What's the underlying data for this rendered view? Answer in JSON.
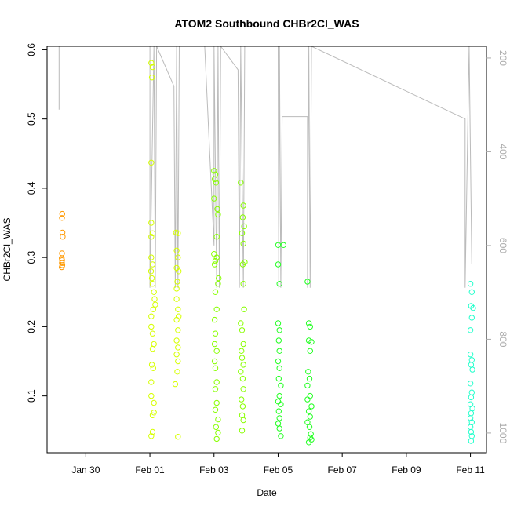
{
  "chart_data": {
    "type": "scatter",
    "title": "ATOM2 Southbound CHBr2Cl_WAS",
    "xlabel": "Date",
    "ylabel": "CHBr2Cl_WAS",
    "xlim": [
      "2017-01-28T19:00",
      "2017-02-11T12:00"
    ],
    "ylim": [
      0.018,
      0.605
    ],
    "x_ticks": [
      "Jan 30",
      "Feb 01",
      "Feb 03",
      "Feb 05",
      "Feb 07",
      "Feb 09",
      "Feb 11"
    ],
    "y_ticks": [
      0.1,
      0.2,
      0.3,
      0.4,
      0.5,
      0.6
    ],
    "right_axis": {
      "reversed": true,
      "ylim": [
        1042,
        175
      ],
      "ticks": [
        200,
        400,
        600,
        800,
        1000
      ],
      "color": "#aaaaaa",
      "note": "altitude trace drawn as grey line"
    },
    "grid": false,
    "legend": "none",
    "series": [
      {
        "color": "#ff9900",
        "points": [
          [
            "2017-01-29T06:10",
            0.357
          ],
          [
            "2017-01-29T06:20",
            0.363
          ],
          [
            "2017-01-29T06:30",
            0.336
          ],
          [
            "2017-01-29T06:40",
            0.33
          ],
          [
            "2017-01-29T06:10",
            0.306
          ],
          [
            "2017-01-29T06:00",
            0.299
          ],
          [
            "2017-01-29T06:15",
            0.296
          ],
          [
            "2017-01-29T06:05",
            0.292
          ],
          [
            "2017-01-29T06:25",
            0.289
          ],
          [
            "2017-01-29T06:00",
            0.286
          ]
        ]
      },
      {
        "color": "#d6ff00",
        "points": [
          [
            "2017-02-01T01:00",
            0.581
          ],
          [
            "2017-02-01T02:00",
            0.575
          ],
          [
            "2017-02-01T01:30",
            0.56
          ],
          [
            "2017-02-01T01:00",
            0.437
          ],
          [
            "2017-02-01T01:00",
            0.35
          ],
          [
            "2017-02-01T02:00",
            0.335
          ],
          [
            "2017-02-01T01:00",
            0.33
          ],
          [
            "2017-02-01T01:00",
            0.3
          ],
          [
            "2017-02-01T02:00",
            0.29
          ],
          [
            "2017-02-01T00:50",
            0.28
          ],
          [
            "2017-02-01T01:30",
            0.27
          ],
          [
            "2017-02-01T02:00",
            0.262
          ],
          [
            "2017-02-01T03:00",
            0.25
          ],
          [
            "2017-02-01T03:30",
            0.24
          ],
          [
            "2017-02-01T04:00",
            0.232
          ],
          [
            "2017-02-01T02:30",
            0.225
          ],
          [
            "2017-02-01T01:00",
            0.215
          ],
          [
            "2017-02-01T01:00",
            0.2
          ],
          [
            "2017-02-01T02:00",
            0.19
          ],
          [
            "2017-02-01T03:00",
            0.175
          ],
          [
            "2017-02-01T02:00",
            0.168
          ],
          [
            "2017-02-01T01:30",
            0.145
          ],
          [
            "2017-02-01T02:30",
            0.14
          ],
          [
            "2017-02-01T01:00",
            0.12
          ],
          [
            "2017-02-01T01:00",
            0.1
          ],
          [
            "2017-02-01T03:00",
            0.09
          ],
          [
            "2017-02-01T03:00",
            0.076
          ],
          [
            "2017-02-01T02:00",
            0.072
          ],
          [
            "2017-02-01T02:00",
            0.048
          ],
          [
            "2017-02-01T01:00",
            0.042
          ],
          [
            "2017-02-01T19:30",
            0.336
          ],
          [
            "2017-02-01T21:00",
            0.335
          ],
          [
            "2017-02-01T20:00",
            0.31
          ],
          [
            "2017-02-01T21:00",
            0.3
          ],
          [
            "2017-02-01T20:00",
            0.285
          ],
          [
            "2017-02-01T21:30",
            0.28
          ],
          [
            "2017-02-01T20:30",
            0.265
          ],
          [
            "2017-02-01T20:00",
            0.255
          ],
          [
            "2017-02-01T20:00",
            0.24
          ],
          [
            "2017-02-01T21:00",
            0.225
          ],
          [
            "2017-02-01T21:30",
            0.215
          ],
          [
            "2017-02-01T20:00",
            0.21
          ],
          [
            "2017-02-01T21:00",
            0.195
          ],
          [
            "2017-02-01T20:00",
            0.18
          ],
          [
            "2017-02-01T21:00",
            0.17
          ],
          [
            "2017-02-01T20:00",
            0.16
          ],
          [
            "2017-02-01T21:00",
            0.15
          ],
          [
            "2017-02-01T20:30",
            0.135
          ],
          [
            "2017-02-01T19:00",
            0.117
          ],
          [
            "2017-02-01T21:00",
            0.041
          ]
        ]
      },
      {
        "color": "#88ff00",
        "points": [
          [
            "2017-02-03T00:00",
            0.425
          ],
          [
            "2017-02-03T01:00",
            0.42
          ],
          [
            "2017-02-03T00:30",
            0.413
          ],
          [
            "2017-02-03T01:30",
            0.408
          ],
          [
            "2017-02-03T00:00",
            0.385
          ],
          [
            "2017-02-03T02:30",
            0.37
          ],
          [
            "2017-02-03T03:00",
            0.362
          ],
          [
            "2017-02-03T02:00",
            0.33
          ],
          [
            "2017-02-03T00:00",
            0.305
          ],
          [
            "2017-02-03T02:00",
            0.3
          ],
          [
            "2017-02-03T01:00",
            0.295
          ],
          [
            "2017-02-03T00:30",
            0.29
          ],
          [
            "2017-02-03T03:30",
            0.27
          ],
          [
            "2017-02-03T03:00",
            0.262
          ],
          [
            "2017-02-03T01:00",
            0.25
          ],
          [
            "2017-02-03T02:00",
            0.225
          ],
          [
            "2017-02-03T00:30",
            0.21
          ],
          [
            "2017-02-03T01:00",
            0.19
          ],
          [
            "2017-02-03T00:30",
            0.175
          ],
          [
            "2017-02-03T02:00",
            0.165
          ],
          [
            "2017-02-03T00:30",
            0.15
          ],
          [
            "2017-02-03T01:00",
            0.14
          ],
          [
            "2017-02-03T02:00",
            0.12
          ],
          [
            "2017-02-03T01:00",
            0.11
          ],
          [
            "2017-02-03T02:00",
            0.09
          ],
          [
            "2017-02-03T01:00",
            0.08
          ],
          [
            "2017-02-03T03:00",
            0.066
          ],
          [
            "2017-02-03T01:30",
            0.055
          ],
          [
            "2017-02-03T03:00",
            0.047
          ],
          [
            "2017-02-03T02:00",
            0.038
          ],
          [
            "2017-02-03T20:00",
            0.408
          ],
          [
            "2017-02-03T22:00",
            0.375
          ],
          [
            "2017-02-03T21:30",
            0.358
          ],
          [
            "2017-02-03T22:30",
            0.345
          ],
          [
            "2017-02-03T21:00",
            0.335
          ],
          [
            "2017-02-03T22:00",
            0.32
          ],
          [
            "2017-02-03T23:00",
            0.293
          ],
          [
            "2017-02-03T21:30",
            0.29
          ],
          [
            "2017-02-03T22:00",
            0.262
          ],
          [
            "2017-02-03T22:30",
            0.225
          ],
          [
            "2017-02-03T20:00",
            0.205
          ],
          [
            "2017-02-03T21:00",
            0.195
          ],
          [
            "2017-02-03T22:00",
            0.175
          ],
          [
            "2017-02-03T20:30",
            0.165
          ],
          [
            "2017-02-03T21:00",
            0.155
          ],
          [
            "2017-02-03T22:00",
            0.145
          ],
          [
            "2017-02-03T20:00",
            0.135
          ],
          [
            "2017-02-03T21:30",
            0.125
          ],
          [
            "2017-02-03T22:00",
            0.11
          ],
          [
            "2017-02-03T20:30",
            0.095
          ],
          [
            "2017-02-03T21:30",
            0.085
          ],
          [
            "2017-02-03T21:00",
            0.072
          ],
          [
            "2017-02-03T22:00",
            0.065
          ],
          [
            "2017-02-03T21:00",
            0.05
          ]
        ]
      },
      {
        "color": "#22ff22",
        "points": [
          [
            "2017-02-05T00:00",
            0.318
          ],
          [
            "2017-02-05T04:00",
            0.318
          ],
          [
            "2017-02-05T00:00",
            0.29
          ],
          [
            "2017-02-05T01:00",
            0.262
          ],
          [
            "2017-02-05T00:00",
            0.205
          ],
          [
            "2017-02-05T01:00",
            0.195
          ],
          [
            "2017-02-05T00:30",
            0.18
          ],
          [
            "2017-02-05T01:00",
            0.165
          ],
          [
            "2017-02-05T00:00",
            0.15
          ],
          [
            "2017-02-05T01:00",
            0.14
          ],
          [
            "2017-02-05T00:30",
            0.125
          ],
          [
            "2017-02-05T02:00",
            0.115
          ],
          [
            "2017-02-05T01:00",
            0.1
          ],
          [
            "2017-02-05T00:00",
            0.092
          ],
          [
            "2017-02-05T02:00",
            0.088
          ],
          [
            "2017-02-05T00:30",
            0.078
          ],
          [
            "2017-02-05T01:00",
            0.068
          ],
          [
            "2017-02-05T00:00",
            0.06
          ],
          [
            "2017-02-05T01:00",
            0.053
          ],
          [
            "2017-02-05T02:00",
            0.042
          ],
          [
            "2017-02-05T22:00",
            0.265
          ],
          [
            "2017-02-05T23:00",
            0.205
          ],
          [
            "2017-02-06T00:00",
            0.2
          ],
          [
            "2017-02-05T23:00",
            0.18
          ],
          [
            "2017-02-06T01:00",
            0.178
          ],
          [
            "2017-02-06T00:00",
            0.165
          ],
          [
            "2017-02-05T22:30",
            0.135
          ],
          [
            "2017-02-05T23:30",
            0.125
          ],
          [
            "2017-02-05T22:00",
            0.115
          ],
          [
            "2017-02-06T00:00",
            0.1
          ],
          [
            "2017-02-05T22:00",
            0.095
          ],
          [
            "2017-02-06T01:00",
            0.085
          ],
          [
            "2017-02-05T23:00",
            0.078
          ],
          [
            "2017-02-06T00:00",
            0.07
          ],
          [
            "2017-02-05T22:00",
            0.062
          ],
          [
            "2017-02-05T23:30",
            0.055
          ],
          [
            "2017-02-06T00:30",
            0.045
          ],
          [
            "2017-02-06T00:00",
            0.04
          ],
          [
            "2017-02-06T01:00",
            0.037
          ],
          [
            "2017-02-05T23:00",
            0.033
          ]
        ]
      },
      {
        "color": "#22ffcc",
        "points": [
          [
            "2017-02-11T00:00",
            0.262
          ],
          [
            "2017-02-11T01:00",
            0.25
          ],
          [
            "2017-02-11T00:30",
            0.23
          ],
          [
            "2017-02-11T02:00",
            0.227
          ],
          [
            "2017-02-11T01:00",
            0.213
          ],
          [
            "2017-02-11T00:00",
            0.195
          ],
          [
            "2017-02-11T00:00",
            0.16
          ],
          [
            "2017-02-11T01:00",
            0.152
          ],
          [
            "2017-02-11T00:30",
            0.145
          ],
          [
            "2017-02-11T01:30",
            0.138
          ],
          [
            "2017-02-11T00:00",
            0.118
          ],
          [
            "2017-02-11T01:00",
            0.105
          ],
          [
            "2017-02-11T00:30",
            0.098
          ],
          [
            "2017-02-11T00:00",
            0.088
          ],
          [
            "2017-02-11T01:30",
            0.082
          ],
          [
            "2017-02-11T00:30",
            0.075
          ],
          [
            "2017-02-11T00:00",
            0.068
          ],
          [
            "2017-02-11T01:00",
            0.062
          ],
          [
            "2017-02-11T00:00",
            0.055
          ],
          [
            "2017-02-11T00:30",
            0.048
          ],
          [
            "2017-02-11T01:00",
            0.042
          ],
          [
            "2017-02-11T00:30",
            0.035
          ]
        ]
      }
    ],
    "altitude_trace": {
      "color": "#bbbbbb",
      "points": [
        [
          "2017-01-29T04:00",
          175
        ],
        [
          "2017-01-29T04:00",
          310
        ],
        [
          "2017-01-29T04:00",
          175
        ],
        [
          "2017-01-31T18:00",
          175
        ],
        [
          "2017-02-01T00:00",
          175
        ],
        [
          "2017-02-01T00:00",
          690
        ],
        [
          "2017-02-01T03:00",
          175
        ],
        [
          "2017-02-01T04:00",
          690
        ],
        [
          "2017-02-01T05:00",
          175
        ],
        [
          "2017-02-01T18:00",
          260
        ],
        [
          "2017-02-01T19:00",
          690
        ],
        [
          "2017-02-01T20:00",
          175
        ],
        [
          "2017-02-01T21:00",
          690
        ],
        [
          "2017-02-01T22:00",
          175
        ],
        [
          "2017-02-02T17:00",
          175
        ],
        [
          "2017-02-03T00:00",
          600
        ],
        [
          "2017-02-03T00:00",
          175
        ],
        [
          "2017-02-03T02:00",
          690
        ],
        [
          "2017-02-03T03:00",
          175
        ],
        [
          "2017-02-03T04:00",
          690
        ],
        [
          "2017-02-03T05:00",
          175
        ],
        [
          "2017-02-03T18:00",
          225
        ],
        [
          "2017-02-03T19:00",
          690
        ],
        [
          "2017-02-03T20:00",
          175
        ],
        [
          "2017-02-03T22:00",
          690
        ],
        [
          "2017-02-03T23:00",
          175
        ],
        [
          "2017-02-05T00:00",
          175
        ],
        [
          "2017-02-05T00:30",
          690
        ],
        [
          "2017-02-05T01:00",
          175
        ],
        [
          "2017-02-05T02:00",
          690
        ],
        [
          "2017-02-05T03:00",
          325
        ],
        [
          "2017-02-05T22:00",
          325
        ],
        [
          "2017-02-05T22:00",
          690
        ],
        [
          "2017-02-05T23:00",
          175
        ],
        [
          "2017-02-06T00:00",
          690
        ],
        [
          "2017-02-06T01:00",
          175
        ],
        [
          "2017-02-10T20:00",
          330
        ],
        [
          "2017-02-10T20:00",
          690
        ],
        [
          "2017-02-10T23:00",
          175
        ],
        [
          "2017-02-11T01:00",
          640
        ]
      ]
    }
  }
}
